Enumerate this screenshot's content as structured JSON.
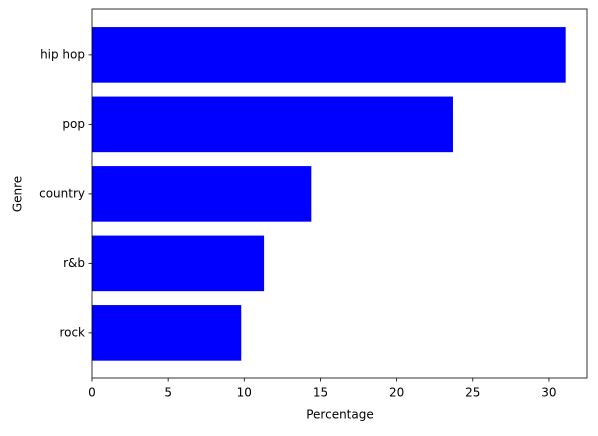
{
  "chart_data": {
    "type": "barh",
    "x_label": "Percentage",
    "y_label": "Genre",
    "categories": [
      "hip hop",
      "pop",
      "country",
      "r&b",
      "rock"
    ],
    "values": [
      31.1,
      23.7,
      14.4,
      11.3,
      9.8
    ],
    "color": "#0000ff",
    "xlim": [
      0,
      32.5
    ],
    "xticks": [
      0,
      5,
      10,
      15,
      20,
      25,
      30
    ]
  }
}
